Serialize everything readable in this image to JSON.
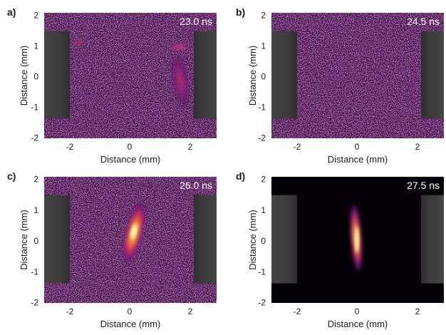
{
  "panels": [
    {
      "letter": "a)",
      "time_label": "23.0 ns",
      "x_ticks": [
        "-2",
        "0",
        "2"
      ],
      "y_ticks": [
        "2",
        "1",
        "0",
        "-1",
        "-2"
      ],
      "x_label": "Distance (mm)",
      "y_label": "Distance (mm)",
      "background": "noisy",
      "emission": "edge-faint"
    },
    {
      "letter": "b)",
      "time_label": "24.5 ns",
      "x_ticks": [
        "-2",
        "0",
        "2"
      ],
      "y_ticks": [
        "2",
        "1",
        "0",
        "-1",
        "-2"
      ],
      "x_label": "Distance (mm)",
      "y_label": "Distance (mm)",
      "background": "noisy",
      "emission": "none"
    },
    {
      "letter": "c)",
      "time_label": "26.0 ns",
      "x_ticks": [
        "-2",
        "0",
        "2"
      ],
      "y_ticks": [
        "2",
        "1",
        "0",
        "-1",
        "-2"
      ],
      "x_label": "Distance (mm)",
      "y_label": "Distance (mm)",
      "background": "noisy",
      "emission": "central-medium"
    },
    {
      "letter": "d)",
      "time_label": "27.5 ns",
      "x_ticks": [
        "-2",
        "0",
        "2"
      ],
      "y_ticks": [
        "2",
        "1",
        "0",
        "-1",
        "-2"
      ],
      "x_label": "Distance (mm)",
      "y_label": "Distance (mm)",
      "background": "dark",
      "emission": "central-bright"
    }
  ],
  "colors": {
    "noise_bg": "#2a0a2e",
    "dark_bg": "#050008",
    "electrode": "#3c3c3c",
    "electrode_edge": "#555555",
    "text_on_image": "#ffffff"
  }
}
